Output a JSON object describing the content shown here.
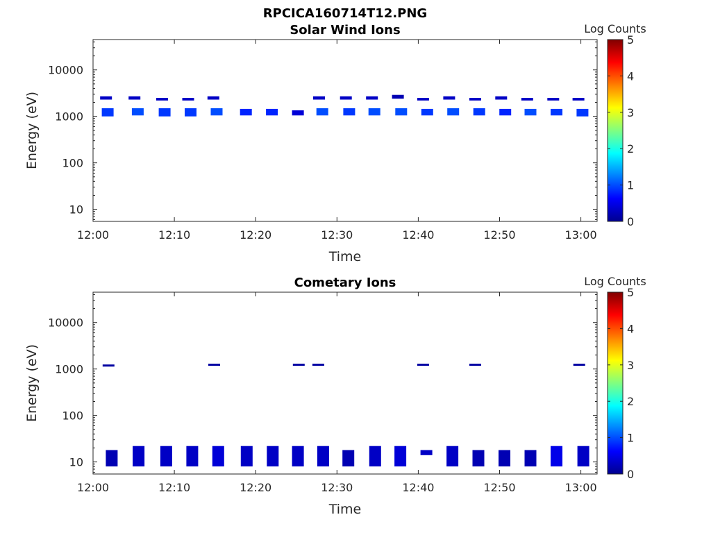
{
  "figure_title": "RPCICA160714T12.PNG",
  "colormap": [
    "#00008f",
    "#0000ff",
    "#0080ff",
    "#00ffff",
    "#80ff80",
    "#ffff00",
    "#ff8000",
    "#ff0000",
    "#800000"
  ],
  "chart_data": [
    {
      "type": "heatmap",
      "title": "Solar Wind Ions",
      "xlabel": "Time",
      "ylabel": "Energy (eV)",
      "x_ticks": [
        "12:00",
        "12:10",
        "12:20",
        "12:30",
        "12:40",
        "12:50",
        "13:00"
      ],
      "y_ticks": [
        "10",
        "100",
        "1000",
        "10000"
      ],
      "y_scale": "log",
      "ylim": [
        5.5,
        45000
      ],
      "xlim_minutes": [
        0,
        62
      ],
      "colorbar": {
        "label": "Log Counts",
        "ticks": [
          "0",
          "1",
          "2",
          "3",
          "4",
          "5"
        ],
        "range": [
          0,
          5
        ]
      },
      "cells": [
        {
          "t": 1.6,
          "e_lo": 2300,
          "e_hi": 2700,
          "v": 0.3
        },
        {
          "t": 5.1,
          "e_lo": 2300,
          "e_hi": 2700,
          "v": 0.3
        },
        {
          "t": 8.5,
          "e_lo": 2200,
          "e_hi": 2500,
          "v": 0.3
        },
        {
          "t": 11.7,
          "e_lo": 2200,
          "e_hi": 2500,
          "v": 0.3
        },
        {
          "t": 14.8,
          "e_lo": 2300,
          "e_hi": 2700,
          "v": 0.3
        },
        {
          "t": 27.8,
          "e_lo": 2300,
          "e_hi": 2700,
          "v": 0.3
        },
        {
          "t": 31.1,
          "e_lo": 2300,
          "e_hi": 2700,
          "v": 0.3
        },
        {
          "t": 34.3,
          "e_lo": 2300,
          "e_hi": 2700,
          "v": 0.3
        },
        {
          "t": 37.5,
          "e_lo": 2400,
          "e_hi": 2900,
          "v": 0.2
        },
        {
          "t": 40.6,
          "e_lo": 2200,
          "e_hi": 2500,
          "v": 0.3
        },
        {
          "t": 43.8,
          "e_lo": 2300,
          "e_hi": 2700,
          "v": 0.3
        },
        {
          "t": 47.0,
          "e_lo": 2200,
          "e_hi": 2500,
          "v": 0.3
        },
        {
          "t": 50.2,
          "e_lo": 2300,
          "e_hi": 2700,
          "v": 0.3
        },
        {
          "t": 53.4,
          "e_lo": 2200,
          "e_hi": 2500,
          "v": 0.3
        },
        {
          "t": 56.6,
          "e_lo": 2200,
          "e_hi": 2500,
          "v": 0.3
        },
        {
          "t": 59.7,
          "e_lo": 2200,
          "e_hi": 2500,
          "v": 0.3
        },
        {
          "t": 1.8,
          "e_lo": 1000,
          "e_hi": 1500,
          "v": 0.9
        },
        {
          "t": 5.5,
          "e_lo": 1050,
          "e_hi": 1500,
          "v": 1.0
        },
        {
          "t": 8.8,
          "e_lo": 1000,
          "e_hi": 1500,
          "v": 0.9
        },
        {
          "t": 12.0,
          "e_lo": 1000,
          "e_hi": 1500,
          "v": 0.9
        },
        {
          "t": 15.2,
          "e_lo": 1050,
          "e_hi": 1500,
          "v": 1.0
        },
        {
          "t": 18.8,
          "e_lo": 1050,
          "e_hi": 1450,
          "v": 0.8
        },
        {
          "t": 22.0,
          "e_lo": 1050,
          "e_hi": 1450,
          "v": 0.8
        },
        {
          "t": 25.2,
          "e_lo": 1050,
          "e_hi": 1350,
          "v": 0.4
        },
        {
          "t": 28.2,
          "e_lo": 1050,
          "e_hi": 1500,
          "v": 1.0
        },
        {
          "t": 31.5,
          "e_lo": 1050,
          "e_hi": 1500,
          "v": 0.9
        },
        {
          "t": 34.6,
          "e_lo": 1050,
          "e_hi": 1500,
          "v": 1.0
        },
        {
          "t": 37.9,
          "e_lo": 1050,
          "e_hi": 1500,
          "v": 1.0
        },
        {
          "t": 41.1,
          "e_lo": 1050,
          "e_hi": 1450,
          "v": 0.9
        },
        {
          "t": 44.3,
          "e_lo": 1050,
          "e_hi": 1500,
          "v": 1.0
        },
        {
          "t": 47.5,
          "e_lo": 1050,
          "e_hi": 1500,
          "v": 0.9
        },
        {
          "t": 50.7,
          "e_lo": 1050,
          "e_hi": 1450,
          "v": 0.8
        },
        {
          "t": 53.8,
          "e_lo": 1050,
          "e_hi": 1450,
          "v": 1.0
        },
        {
          "t": 57.0,
          "e_lo": 1050,
          "e_hi": 1450,
          "v": 0.9
        },
        {
          "t": 60.2,
          "e_lo": 1000,
          "e_hi": 1450,
          "v": 0.9
        }
      ]
    },
    {
      "type": "heatmap",
      "title": "Cometary Ions",
      "xlabel": "Time",
      "ylabel": "Energy (eV)",
      "x_ticks": [
        "12:00",
        "12:10",
        "12:20",
        "12:30",
        "12:40",
        "12:50",
        "13:00"
      ],
      "y_ticks": [
        "10",
        "100",
        "1000",
        "10000"
      ],
      "y_scale": "log",
      "ylim": [
        5.5,
        45000
      ],
      "xlim_minutes": [
        0,
        62
      ],
      "colorbar": {
        "label": "Log Counts",
        "ticks": [
          "0",
          "1",
          "2",
          "3",
          "4",
          "5"
        ],
        "range": [
          0,
          5
        ]
      },
      "cells": [
        {
          "t": 1.9,
          "e_lo": 1150,
          "e_hi": 1250,
          "v": 0.1
        },
        {
          "t": 14.9,
          "e_lo": 1200,
          "e_hi": 1300,
          "v": 0.1
        },
        {
          "t": 25.3,
          "e_lo": 1200,
          "e_hi": 1300,
          "v": 0.1
        },
        {
          "t": 27.7,
          "e_lo": 1200,
          "e_hi": 1300,
          "v": 0.1
        },
        {
          "t": 40.6,
          "e_lo": 1200,
          "e_hi": 1300,
          "v": 0.1
        },
        {
          "t": 47.0,
          "e_lo": 1200,
          "e_hi": 1300,
          "v": 0.1
        },
        {
          "t": 59.8,
          "e_lo": 1200,
          "e_hi": 1300,
          "v": 0.1
        },
        {
          "t": 2.3,
          "e_lo": 8,
          "e_hi": 18,
          "v": 0.2
        },
        {
          "t": 5.6,
          "e_lo": 8,
          "e_hi": 22,
          "v": 0.3
        },
        {
          "t": 9.0,
          "e_lo": 8,
          "e_hi": 22,
          "v": 0.3
        },
        {
          "t": 12.2,
          "e_lo": 8,
          "e_hi": 22,
          "v": 0.3
        },
        {
          "t": 15.4,
          "e_lo": 8,
          "e_hi": 22,
          "v": 0.4
        },
        {
          "t": 18.9,
          "e_lo": 8,
          "e_hi": 22,
          "v": 0.3
        },
        {
          "t": 22.1,
          "e_lo": 8,
          "e_hi": 22,
          "v": 0.3
        },
        {
          "t": 25.2,
          "e_lo": 8,
          "e_hi": 22,
          "v": 0.3
        },
        {
          "t": 28.3,
          "e_lo": 8,
          "e_hi": 22,
          "v": 0.3
        },
        {
          "t": 31.4,
          "e_lo": 8,
          "e_hi": 18,
          "v": 0.2
        },
        {
          "t": 34.7,
          "e_lo": 8,
          "e_hi": 22,
          "v": 0.3
        },
        {
          "t": 37.8,
          "e_lo": 8,
          "e_hi": 22,
          "v": 0.4
        },
        {
          "t": 41.0,
          "e_lo": 14,
          "e_hi": 18,
          "v": 0.3
        },
        {
          "t": 44.2,
          "e_lo": 8,
          "e_hi": 22,
          "v": 0.3
        },
        {
          "t": 47.4,
          "e_lo": 8,
          "e_hi": 18,
          "v": 0.2
        },
        {
          "t": 50.6,
          "e_lo": 8,
          "e_hi": 18,
          "v": 0.2
        },
        {
          "t": 53.8,
          "e_lo": 8,
          "e_hi": 18,
          "v": 0.2
        },
        {
          "t": 57.0,
          "e_lo": 8,
          "e_hi": 22,
          "v": 0.5
        },
        {
          "t": 60.3,
          "e_lo": 8,
          "e_hi": 22,
          "v": 0.3
        }
      ]
    }
  ]
}
